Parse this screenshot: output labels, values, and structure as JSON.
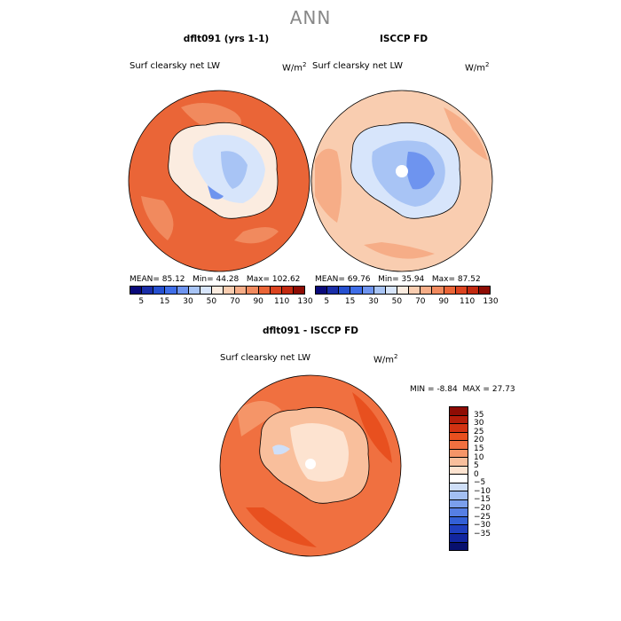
{
  "page": {
    "title": "ANN"
  },
  "chart_data": [
    {
      "type": "heatmap",
      "projection": "south-polar-stereographic",
      "title": "dflt091 (yrs 1-1)",
      "subtitle": "Surf clearsky net LW",
      "units_base": "W/m",
      "units_exp": "2",
      "stats": {
        "mean_label": "MEAN=",
        "mean": "85.12",
        "min_label": "Min=",
        "min": "44.28",
        "max_label": "Max=",
        "max": "102.62"
      },
      "colorbar": {
        "orientation": "horizontal",
        "ticks": [
          "5",
          "15",
          "30",
          "50",
          "70",
          "90",
          "110",
          "130"
        ],
        "colors": [
          "#0a0a7a",
          "#1a2ea8",
          "#2650d0",
          "#3f6ee8",
          "#6e94ef",
          "#a8c4f5",
          "#d7e5fb",
          "#fbece0",
          "#f9cdb0",
          "#f6ad87",
          "#f18a5e",
          "#ea6537",
          "#dc4420",
          "#c2290f",
          "#8e0c04"
        ]
      },
      "land_level": "cool",
      "ocean_level": "warm"
    },
    {
      "type": "heatmap",
      "projection": "south-polar-stereographic",
      "title": "ISCCP FD",
      "subtitle": "Surf clearsky net LW",
      "units_base": "W/m",
      "units_exp": "2",
      "stats": {
        "mean_label": "MEAN=",
        "mean": "69.76",
        "min_label": "Min=",
        "min": "35.94",
        "max_label": "Max=",
        "max": "87.52"
      },
      "colorbar": {
        "orientation": "horizontal",
        "ticks": [
          "5",
          "15",
          "30",
          "50",
          "70",
          "90",
          "110",
          "130"
        ],
        "colors": [
          "#0a0a7a",
          "#1a2ea8",
          "#2650d0",
          "#3f6ee8",
          "#6e94ef",
          "#a8c4f5",
          "#d7e5fb",
          "#fbece0",
          "#f9cdb0",
          "#f6ad87",
          "#f18a5e",
          "#ea6537",
          "#dc4420",
          "#c2290f",
          "#8e0c04"
        ]
      },
      "land_level": "cool",
      "ocean_level": "light-warm"
    },
    {
      "type": "heatmap",
      "projection": "south-polar-stereographic",
      "title": "dflt091 - ISCCP FD",
      "subtitle": "Surf clearsky net LW",
      "units_base": "W/m",
      "units_exp": "2",
      "stats": {
        "min_label": "MIN =",
        "min": "-8.84",
        "max_label": "MAX =",
        "max": "27.73"
      },
      "colorbar": {
        "orientation": "vertical",
        "ticks": [
          "35",
          "30",
          "25",
          "20",
          "15",
          "10",
          "5",
          "0",
          "−5",
          "−10",
          "−15",
          "−20",
          "−25",
          "−30",
          "−35"
        ],
        "colors": [
          "#8e0c04",
          "#b51d0a",
          "#d23212",
          "#e8501f",
          "#f07040",
          "#f59568",
          "#f9bf9c",
          "#fde3d0",
          "#ffffff",
          "#cfdff8",
          "#a3bff2",
          "#7b9fec",
          "#567fe4",
          "#3360d6",
          "#1f3fbf",
          "#1226a0",
          "#08106e"
        ]
      },
      "land_level": "light",
      "ocean_level": "warm"
    }
  ]
}
